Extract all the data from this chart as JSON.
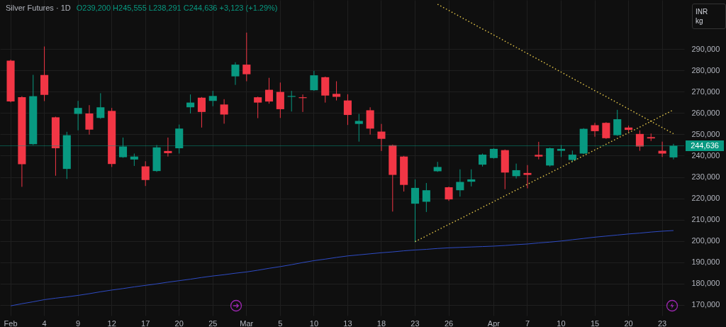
{
  "chart_data": {
    "type": "candlestick",
    "title": "Silver Futures · 1D",
    "subtitle": "O239,200 H245,555 L238,291 C244,636 +3,123 (+1.29%)",
    "annotations": [
      "INR",
      "kg"
    ],
    "categories": [
      "Feb",
      null,
      null,
      "4",
      null,
      null,
      "9",
      null,
      null,
      "12",
      null,
      null,
      "17",
      null,
      null,
      "20",
      null,
      null,
      "25",
      null,
      null,
      "Mar",
      null,
      null,
      "5",
      null,
      null,
      "10",
      null,
      null,
      "13",
      null,
      null,
      "18",
      null,
      null,
      "23",
      null,
      null,
      "26",
      null,
      null,
      null,
      "Apr",
      null,
      null,
      "7",
      null,
      null,
      "10",
      null,
      null,
      "15",
      null,
      null,
      "20",
      null,
      null,
      "23",
      null
    ],
    "ohlc": [
      [
        284600,
        285000,
        265000,
        265400
      ],
      [
        267400,
        267900,
        225400,
        236000
      ],
      [
        245400,
        277900,
        245000,
        267900
      ],
      [
        277800,
        291200,
        265600,
        268500
      ],
      [
        258000,
        258300,
        230600,
        243500
      ],
      [
        233800,
        251200,
        229100,
        249600
      ],
      [
        259600,
        265700,
        251900,
        262400
      ],
      [
        259800,
        263700,
        249900,
        252200
      ],
      [
        257700,
        269300,
        257300,
        262700
      ],
      [
        261000,
        262400,
        234700,
        236100
      ],
      [
        239300,
        248500,
        239000,
        244300
      ],
      [
        238200,
        241000,
        235200,
        239600
      ],
      [
        235000,
        237400,
        225800,
        228600
      ],
      [
        232800,
        245000,
        232400,
        243900
      ],
      [
        242200,
        248500,
        239600,
        241200
      ],
      [
        243500,
        254600,
        241000,
        252700
      ],
      [
        262700,
        268700,
        259800,
        264900
      ],
      [
        267200,
        267500,
        253200,
        260500
      ],
      [
        265700,
        270400,
        263200,
        268000
      ],
      [
        264000,
        266500,
        255000,
        259300
      ],
      [
        277200,
        283800,
        273200,
        282700
      ],
      [
        282700,
        297700,
        274900,
        278200
      ],
      [
        267400,
        267700,
        257600,
        264900
      ],
      [
        270900,
        276500,
        264400,
        265400
      ],
      [
        269900,
        274300,
        257700,
        261800
      ],
      [
        267600,
        270400,
        260700,
        268000
      ],
      [
        267400,
        268700,
        260500,
        267000
      ],
      [
        270700,
        279800,
        270400,
        277700
      ],
      [
        276800,
        277100,
        264900,
        268200
      ],
      [
        269000,
        274900,
        265900,
        267600
      ],
      [
        265900,
        268800,
        254400,
        259100
      ],
      [
        254900,
        259600,
        246600,
        256300
      ],
      [
        261300,
        262700,
        249900,
        252700
      ],
      [
        251300,
        254900,
        242200,
        247900
      ],
      [
        244900,
        245200,
        213800,
        231000
      ],
      [
        239600,
        239900,
        223200,
        226300
      ],
      [
        217500,
        228900,
        199400,
        224900
      ],
      [
        218400,
        227200,
        213600,
        223800
      ],
      [
        232700,
        237100,
        232400,
        234700
      ],
      [
        225200,
        225500,
        218800,
        219500
      ],
      [
        223800,
        233600,
        220800,
        227700
      ],
      [
        227800,
        233600,
        225600,
        228900
      ],
      [
        235800,
        241000,
        234900,
        240500
      ],
      [
        238900,
        243500,
        238600,
        243200
      ],
      [
        242600,
        242900,
        224300,
        232100
      ],
      [
        230400,
        236300,
        229300,
        233200
      ],
      [
        231900,
        235600,
        224700,
        231000
      ],
      [
        240400,
        246500,
        238300,
        239600
      ],
      [
        235400,
        243800,
        234900,
        243500
      ],
      [
        242300,
        245000,
        239400,
        243200
      ],
      [
        238000,
        242400,
        237100,
        240500
      ],
      [
        241000,
        252900,
        240700,
        252600
      ],
      [
        254300,
        255400,
        248900,
        251500
      ],
      [
        255400,
        255700,
        247900,
        248200
      ],
      [
        249600,
        261500,
        249300,
        257100
      ],
      [
        253200,
        254100,
        251200,
        252100
      ],
      [
        250200,
        251900,
        242300,
        244300
      ],
      [
        248700,
        250400,
        246900,
        248100
      ],
      [
        242300,
        246600,
        239400,
        241000
      ],
      [
        239200,
        245555,
        238291,
        244636
      ]
    ],
    "colors": [
      "#f23645",
      "#f23645",
      "#089981",
      "#f23645",
      "#f23645",
      "#089981",
      "#089981",
      "#f23645",
      "#089981",
      "#f23645",
      "#089981",
      "#089981",
      "#f23645",
      "#089981",
      "#f23645",
      "#089981",
      "#089981",
      "#f23645",
      "#089981",
      "#f23645",
      "#089981",
      "#f23645",
      "#f23645",
      "#f23645",
      "#f23645",
      "#089981",
      "#f23645",
      "#089981",
      "#f23645",
      "#f23645",
      "#f23645",
      "#089981",
      "#f23645",
      "#f23645",
      "#f23645",
      "#f23645",
      "#089981",
      "#089981",
      "#089981",
      "#f23645",
      "#089981",
      "#089981",
      "#089981",
      "#089981",
      "#f23645",
      "#089981",
      "#f23645",
      "#f23645",
      "#089981",
      "#089981",
      "#089981",
      "#089981",
      "#f23645",
      "#f23645",
      "#089981",
      "#f23645",
      "#f23645",
      "#f23645",
      "#f23645",
      "#089981"
    ],
    "series": [
      {
        "type": "line",
        "color": "#2e4bc4",
        "line_style": "solid",
        "values": [
          169600,
          170600,
          171500,
          172500,
          173200,
          173800,
          174500,
          175300,
          176200,
          177000,
          177700,
          178500,
          179200,
          179900,
          180700,
          181400,
          182100,
          182900,
          183600,
          184200,
          184900,
          185500,
          186300,
          187200,
          188000,
          188900,
          189900,
          190800,
          191500,
          192300,
          193000,
          193500,
          194000,
          194500,
          194900,
          195400,
          195800,
          196100,
          196500,
          196800,
          197000,
          197200,
          197400,
          197600,
          197900,
          198300,
          198600,
          199100,
          199500,
          200000,
          200600,
          201200,
          201800,
          202300,
          202800,
          203300,
          203700,
          204200,
          204600,
          204900
        ]
      },
      {
        "type": "line",
        "color": "#e8c94a",
        "line_style": "dotted",
        "values": [
          null,
          null,
          null,
          null,
          null,
          null,
          null,
          null,
          null,
          null,
          null,
          null,
          null,
          null,
          null,
          null,
          null,
          null,
          null,
          null,
          null,
          null,
          null,
          null,
          null,
          null,
          null,
          null,
          null,
          null,
          null,
          null,
          null,
          null,
          null,
          null,
          199700,
          202400,
          205100,
          207800,
          210400,
          213100,
          215800,
          218500,
          221200,
          223900,
          226600,
          229300,
          231900,
          234600,
          237300,
          240000,
          242700,
          245400,
          248100,
          250800,
          253400,
          256100,
          258800,
          261500
        ]
      },
      {
        "type": "line",
        "color": "#e8c94a",
        "line_style": "dotted",
        "values": [
          null,
          null,
          null,
          null,
          null,
          null,
          null,
          null,
          null,
          null,
          null,
          null,
          null,
          null,
          null,
          null,
          null,
          null,
          null,
          null,
          null,
          null,
          null,
          null,
          null,
          null,
          null,
          null,
          null,
          null,
          null,
          null,
          null,
          null,
          null,
          null,
          null,
          null,
          311000,
          308100,
          305200,
          302300,
          299400,
          296600,
          293700,
          290800,
          287900,
          285000,
          282100,
          279200,
          276300,
          273400,
          270500,
          267700,
          264800,
          261900,
          259000,
          256100,
          253200,
          250300
        ]
      }
    ],
    "ylim": [
      165000,
      313000
    ],
    "yticks": [
      {
        "value": 170000,
        "label": "170,000"
      },
      {
        "value": 180000,
        "label": "180,000"
      },
      {
        "value": 190000,
        "label": "190,000"
      },
      {
        "value": 200000,
        "label": "200,000"
      },
      {
        "value": 210000,
        "label": "210,000"
      },
      {
        "value": 220000,
        "label": "220,000"
      },
      {
        "value": 230000,
        "label": "230,000"
      },
      {
        "value": 240000,
        "label": "240,000"
      },
      {
        "value": 250000,
        "label": "250,000"
      },
      {
        "value": 260000,
        "label": "260,000"
      },
      {
        "value": 270000,
        "label": "270,000"
      },
      {
        "value": 280000,
        "label": "280,000"
      },
      {
        "value": 290000,
        "label": "290,000"
      }
    ],
    "grid": true,
    "ref_lines": [
      {
        "axis": "y",
        "value": 244636,
        "label": "244,636",
        "color": "#089981"
      }
    ]
  }
}
